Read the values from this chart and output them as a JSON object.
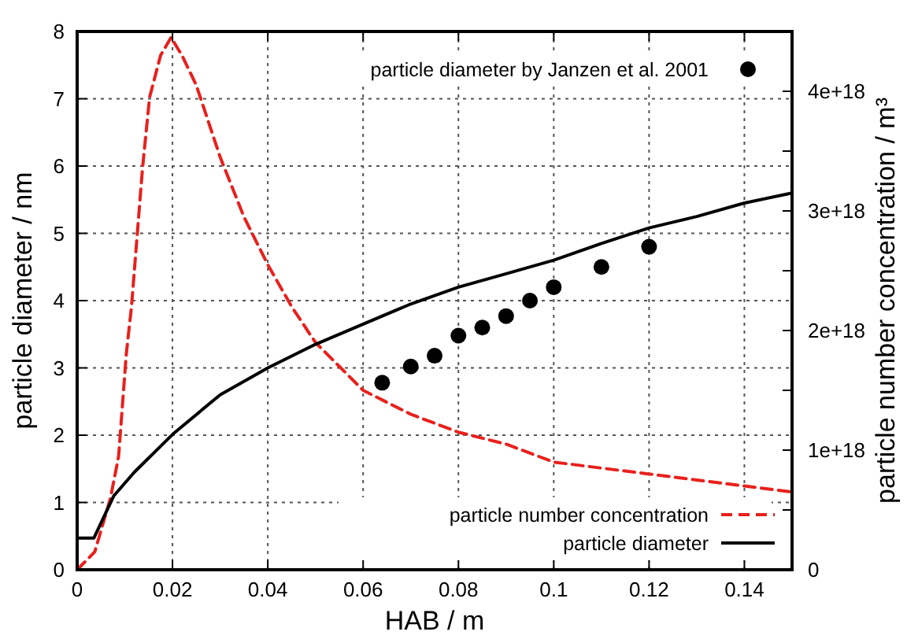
{
  "chart_data": {
    "type": "line",
    "xlabel": "HAB / m",
    "ylabel": "particle diameter / nm",
    "y2label": "particle number concentration / m³",
    "xlim": [
      0,
      0.15
    ],
    "xticks": [
      0,
      0.02,
      0.04,
      0.06,
      0.08,
      0.1,
      0.12,
      0.14
    ],
    "ylim": [
      0,
      8
    ],
    "yticks": [
      0,
      1,
      2,
      3,
      4,
      5,
      6,
      7,
      8
    ],
    "y2lim": [
      0,
      4.5e+18
    ],
    "y2ticks": [
      0,
      {
        "value": 5e+17,
        "label": null
      },
      {
        "value": 1e+18,
        "label": "1e+18"
      },
      {
        "value": 1.5e+18,
        "label": null
      },
      {
        "value": 2e+18,
        "label": "2e+18"
      },
      {
        "value": 2.5e+18,
        "label": null
      },
      {
        "value": 3e+18,
        "label": "3e+18"
      },
      {
        "value": 3.5e+18,
        "label": null
      },
      {
        "value": 4e+18,
        "label": "4e+18"
      }
    ],
    "grid": true,
    "legend": "bottom right",
    "series": [
      {
        "name": "particle diameter by Janzen et al. 2001",
        "type": "scatter",
        "marker": "circle",
        "color": "#000000",
        "x": [
          0.064,
          0.07,
          0.075,
          0.08,
          0.085,
          0.09,
          0.095,
          0.1,
          0.11,
          0.12
        ],
        "values": [
          2.78,
          3.02,
          3.18,
          3.48,
          3.6,
          3.77,
          4.0,
          4.2,
          4.5,
          4.8
        ]
      },
      {
        "name": "particle number concentration",
        "type": "line",
        "axis": "y2",
        "line_style": "dashed",
        "color": "#e8201c",
        "x": [
          0,
          0.0037,
          0.007,
          0.0087,
          0.0103,
          0.0114,
          0.0137,
          0.0152,
          0.0175,
          0.0197,
          0.022,
          0.025,
          0.03,
          0.035,
          0.04,
          0.045,
          0.05,
          0.06,
          0.07,
          0.08,
          0.09,
          0.1,
          0.11,
          0.12,
          0.13,
          0.14,
          0.15
        ],
        "values": [
          0,
          1.5e+17,
          6e+17,
          9.5e+17,
          1.8e+18,
          2.2e+18,
          3.35e+18,
          3.95e+18,
          4.3e+18,
          4.45e+18,
          4.3e+18,
          4.05e+18,
          3.45e+18,
          2.95e+18,
          2.55e+18,
          2.2e+18,
          1.9e+18,
          1.5e+18,
          1.3e+18,
          1.15e+18,
          1.05e+18,
          9e+17,
          8.5e+17,
          8e+17,
          7.5e+17,
          7e+17,
          6.5e+17
        ]
      },
      {
        "name": "particle diameter",
        "line_style": "solid",
        "color": "#000000",
        "x": [
          0,
          0.0035,
          0.0077,
          0.012,
          0.0203,
          0.03,
          0.04,
          0.05,
          0.06,
          0.07,
          0.08,
          0.09,
          0.1,
          0.11,
          0.12,
          0.13,
          0.14,
          0.15
        ],
        "values": [
          0.47,
          0.47,
          1.1,
          1.45,
          2.03,
          2.6,
          3.0,
          3.35,
          3.65,
          3.95,
          4.2,
          4.4,
          4.6,
          4.85,
          5.08,
          5.25,
          5.45,
          5.6
        ]
      }
    ]
  }
}
